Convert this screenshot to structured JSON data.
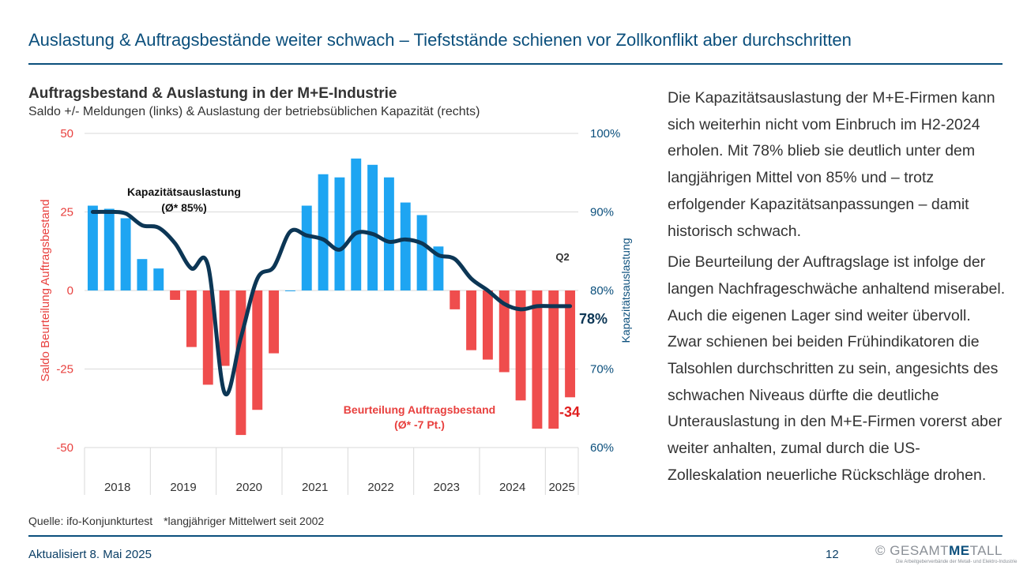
{
  "slide": {
    "title": "Auslastung & Auftragsbestände weiter schwach – Tiefststände schienen vor Zollkonflikt aber durchschritten",
    "chart_title": "Auftragsbestand & Auslastung in der M+E-Industrie",
    "chart_subtitle": "Saldo +/- Meldungen (links) & Auslastung der betriebsüblichen Kapazität (rechts)",
    "source": "Quelle: ifo-Konjunkturtest",
    "footnote": "*langjähriger Mittelwert seit 2002",
    "updated": "Aktualisiert 8. Mai 2025",
    "page_number": "12"
  },
  "logo": {
    "copyright": "©",
    "brand_a": "GESAMT",
    "brand_accent": "ME",
    "brand_b": "TALL",
    "tagline": "Die Arbeitgeberverbände der Metall- und Elektro-Industrie"
  },
  "body": {
    "paragraph1": "Die Kapazitätsauslastung der M+E-Firmen kann sich weiterhin nicht vom Einbruch im H2-2024 erholen. Mit 78% blieb sie deutlich unter dem langjährigen Mittel von 85% und – trotz erfolgender Kapazitätsanpassungen – damit historisch schwach.",
    "paragraph2": "Die Beurteilung der Auftragslage ist infolge der langen Nachfrageschwäche anhaltend miserabel. Auch die eigenen Lager sind weiter übervoll. Zwar schienen bei beiden Frühindikatoren die Talsohlen durchschritten zu sein, angesichts des schwachen Niveaus dürfte die deutliche Unterauslastung in den M+E-Firmen vorerst aber weiter anhalten, zumal durch die US-Zolleskalation neuerliche Rückschläge drohen."
  },
  "colors": {
    "positive_bar": "#1ea5f2",
    "negative_bar": "#ef4d4d",
    "line": "#0c3655",
    "left_axis": "#e8403e",
    "right_axis": "#0b4f7c",
    "title": "#0b4f7c"
  },
  "chart_data": {
    "type": "bar+line",
    "quarters_per_year": 4,
    "years": [
      "2018",
      "2019",
      "2020",
      "2021",
      "2022",
      "2023",
      "2024",
      "2025"
    ],
    "left_axis": {
      "label": "Saldo Beurteilung Auftragsbestand",
      "ticks": [
        "50",
        "25",
        "0",
        "-25",
        "-50"
      ],
      "range": [
        -50,
        50
      ]
    },
    "right_axis": {
      "label": "Kapazitätsauslastung",
      "ticks": [
        "100%",
        "90%",
        "80%",
        "70%",
        "60%"
      ],
      "range": [
        60,
        100
      ]
    },
    "bar_series": {
      "name": "Beurteilung Auftragsbestand",
      "note": "(Ø* -7 Pt.)",
      "values": [
        27,
        26,
        23,
        10,
        7,
        -3,
        -18,
        -30,
        -24,
        -46,
        -38,
        -20,
        0,
        27,
        37,
        36,
        42,
        40,
        36,
        28,
        24,
        14,
        -6,
        -19,
        -22,
        -26,
        -35,
        -44,
        -44,
        -34
      ]
    },
    "line_series": {
      "name": "Kapazitätsauslastung",
      "note": "(Ø* 85%)",
      "values": [
        90,
        90,
        89.8,
        88.3,
        88,
        86,
        82.8,
        83.2,
        67,
        74,
        81.5,
        83,
        87.5,
        87,
        86.5,
        85.2,
        87.3,
        87.2,
        86.2,
        86.5,
        86,
        84.5,
        84,
        81.5,
        80,
        78.3,
        77.6,
        78,
        78,
        78
      ]
    },
    "annotations": {
      "latest_bar": "-34",
      "latest_line": "78%",
      "latest_quarter": "Q2"
    }
  }
}
